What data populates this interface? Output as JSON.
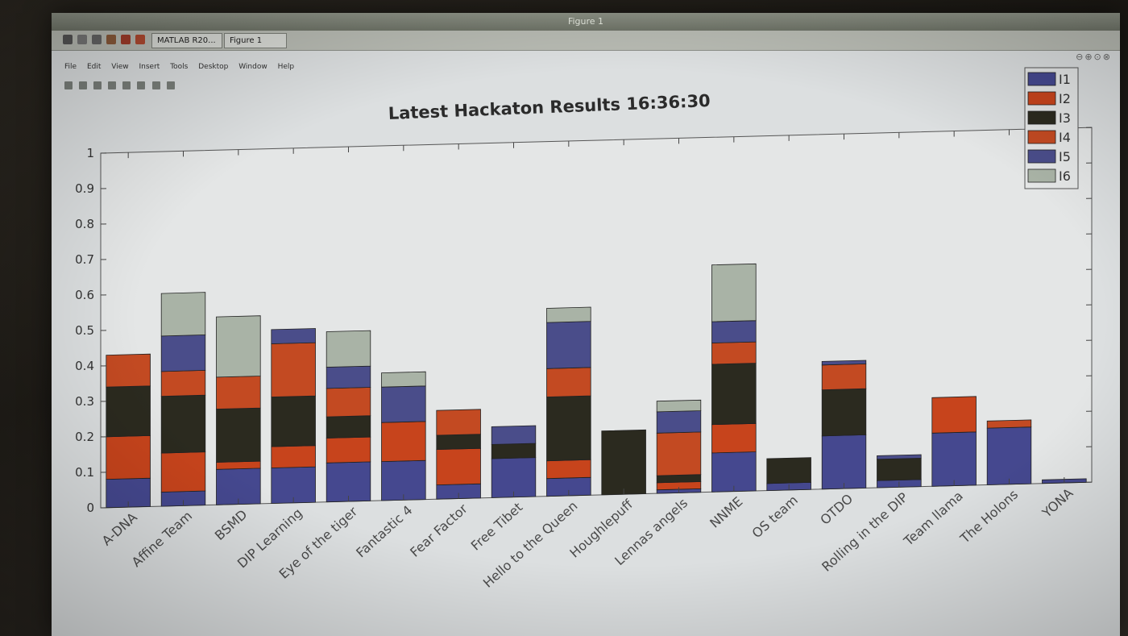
{
  "window": {
    "title": "Figure 1",
    "taskbar_items": [
      "MATLAB R20...",
      "Figure 1"
    ],
    "menu": [
      "File",
      "Edit",
      "View",
      "Insert",
      "Tools",
      "Desktop",
      "Window",
      "Help"
    ]
  },
  "chart_data": {
    "type": "bar",
    "stacked": true,
    "title": "Latest Hackaton Results 16:36:30",
    "xlabel": "",
    "ylabel": "",
    "ylim": [
      0,
      1
    ],
    "yticks": [
      "0",
      "0.1",
      "0.2",
      "0.3",
      "0.4",
      "0.5",
      "0.6",
      "0.7",
      "0.8",
      "0.9",
      "1"
    ],
    "grid": false,
    "legend_position": "top-right",
    "categories": [
      "A-DNA",
      "Affine Team",
      "BSMD",
      "DIP Learning",
      "Eye of the tiger",
      "Fantastic 4",
      "Fear Factor",
      "Free Tibet",
      "Hello to the Queen",
      "Houghlepuff",
      "Lennas angels",
      "NNME",
      "OS team",
      "OTDO",
      "Rolling in the DIP",
      "Team llama",
      "The Holons",
      "YONA"
    ],
    "series": [
      {
        "name": "I1",
        "color": "#45488f",
        "values": [
          0.08,
          0.04,
          0.1,
          0.1,
          0.11,
          0.11,
          0.04,
          0.11,
          0.05,
          0.0,
          0.01,
          0.11,
          0.02,
          0.15,
          0.02,
          0.15,
          0.16,
          0.01
        ]
      },
      {
        "name": "I2",
        "color": "#c7441c",
        "values": [
          0.12,
          0.11,
          0.02,
          0.06,
          0.07,
          0.11,
          0.1,
          0.0,
          0.05,
          0.0,
          0.02,
          0.08,
          0.0,
          0.0,
          0.0,
          0.1,
          0.0,
          0.0
        ]
      },
      {
        "name": "I3",
        "color": "#2b2a1f",
        "values": [
          0.14,
          0.16,
          0.15,
          0.14,
          0.06,
          0.0,
          0.04,
          0.04,
          0.18,
          0.18,
          0.02,
          0.17,
          0.07,
          0.13,
          0.06,
          0.0,
          0.0,
          0.0
        ]
      },
      {
        "name": "I4",
        "color": "#c34a22",
        "values": [
          0.09,
          0.07,
          0.09,
          0.15,
          0.08,
          0.0,
          0.07,
          0.0,
          0.08,
          0.0,
          0.12,
          0.06,
          0.0,
          0.07,
          0.0,
          0.0,
          0.02,
          0.0
        ]
      },
      {
        "name": "I5",
        "color": "#4a4d8a",
        "values": [
          0.0,
          0.1,
          0.0,
          0.04,
          0.06,
          0.1,
          0.0,
          0.05,
          0.13,
          0.0,
          0.06,
          0.06,
          0.0,
          0.01,
          0.01,
          0.0,
          0.0,
          0.0
        ]
      },
      {
        "name": "I6",
        "color": "#a9b3a6",
        "values": [
          0.0,
          0.12,
          0.17,
          0.0,
          0.1,
          0.04,
          0.0,
          0.0,
          0.04,
          0.0,
          0.03,
          0.16,
          0.0,
          0.0,
          0.0,
          0.0,
          0.0,
          0.0
        ]
      }
    ]
  }
}
